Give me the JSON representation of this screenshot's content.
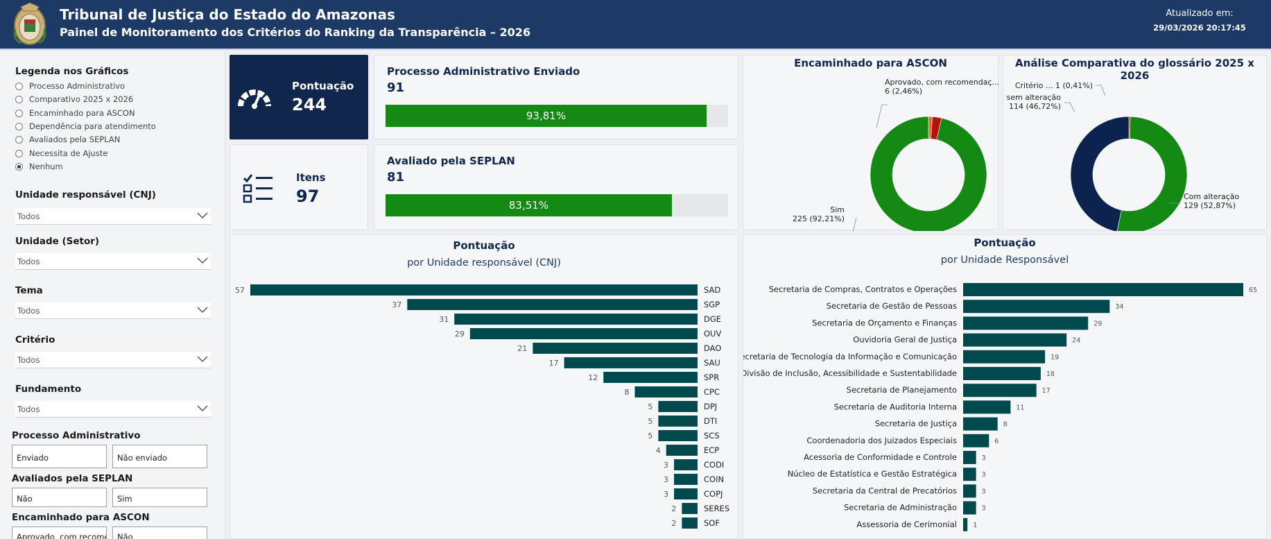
{
  "header": {
    "title": "Tribunal de Justiça do Estado do Amazonas",
    "subtitle": "Painel de Monitoramento dos Critérios do Ranking da Transparência – 2026",
    "updated_label": "Atualizado em:",
    "updated_value": "29/03/2026 20:17:45"
  },
  "filters": {
    "legend_title": "Legenda nos Gráficos",
    "legend_options": [
      {
        "label": "Processo Administrativo",
        "selected": false
      },
      {
        "label": "Comparativo 2025 x 2026",
        "selected": false
      },
      {
        "label": "Encaminhado para ASCON",
        "selected": false
      },
      {
        "label": "Dependência para atendimento",
        "selected": false
      },
      {
        "label": "Avaliados pela SEPLAN",
        "selected": false
      },
      {
        "label": "Necessita de Ajuste",
        "selected": false
      },
      {
        "label": "Nenhum",
        "selected": true
      }
    ],
    "dropdowns": [
      {
        "label": "Unidade responsável (CNJ)",
        "value": "Todos"
      },
      {
        "label": "Unidade (Setor)",
        "value": "Todos"
      },
      {
        "label": "Tema",
        "value": "Todos"
      },
      {
        "label": "Critério",
        "value": "Todos"
      },
      {
        "label": "Fundamento",
        "value": "Todos"
      }
    ],
    "button_groups": [
      {
        "label": "Processo Administrativo",
        "options": [
          "Enviado",
          "Não enviado"
        ]
      },
      {
        "label": "Avaliados pela SEPLAN",
        "options": [
          "Não",
          "Sim"
        ]
      },
      {
        "label": "Encaminhado para ASCON",
        "options": [
          "Aprovado, com recomendações",
          "Não"
        ]
      }
    ]
  },
  "kpis": {
    "pontuacao": {
      "label": "Pontuação",
      "value": "244",
      "icon": "gauge-icon"
    },
    "itens": {
      "label": "Itens",
      "value": "97",
      "icon": "checklist-icon"
    }
  },
  "progress": [
    {
      "title": "Processo Administrativo Enviado",
      "value": "91",
      "percent_label": "93,81%",
      "fraction": 0.9381
    },
    {
      "title": "Avaliado pela SEPLAN",
      "value": "81",
      "percent_label": "83,51%",
      "fraction": 0.8351
    }
  ],
  "colors": {
    "header": "#1d3a66",
    "navy": "#11264d",
    "green": "#148a14",
    "teal_bar": "#00494d",
    "red": "#b3120f",
    "orange": "#e0702a",
    "dark_navy": "#0c2350"
  },
  "chart_data": [
    {
      "type": "pie",
      "title": "Encaminhado para ASCON",
      "slices": [
        {
          "label": "Aprovado, com recomendaç...",
          "value": 6,
          "text": "6 (2,46%)",
          "color": "#b3120f"
        },
        {
          "label": "",
          "value": 2.5,
          "text": "",
          "color": "#e0702a"
        },
        {
          "label": "Sim",
          "value": 225,
          "text": "225 (92,21%)",
          "color": "#148a14"
        }
      ],
      "start_value_offset": 0
    },
    {
      "type": "pie",
      "title": "Análise Comparativa do glossário 2025 x 2026",
      "slices": [
        {
          "label": "Critério ...",
          "value": 1,
          "text": "1 (0,41%)",
          "color": "#b3120f"
        },
        {
          "label": "Com alteração",
          "value": 129,
          "text": "129 (52,87%)",
          "color": "#148a14"
        },
        {
          "label": "sem alteração",
          "value": 114,
          "text": "114 (46,72%)",
          "color": "#0c2350"
        }
      ]
    },
    {
      "type": "bar",
      "title": "Pontuação",
      "subtitle": "por Unidade responsável (CNJ)",
      "categories": [
        "SAD",
        "SGP",
        "DGE",
        "OUV",
        "DAO",
        "SAU",
        "SPR",
        "CPC",
        "DPJ",
        "DTI",
        "SCS",
        "ECP",
        "CODI",
        "COIN",
        "COPJ",
        "SERES",
        "SOF"
      ],
      "values": [
        57,
        37,
        31,
        29,
        21,
        17,
        12,
        8,
        5,
        5,
        5,
        4,
        3,
        3,
        3,
        2,
        2
      ],
      "xlim": [
        0,
        57
      ]
    },
    {
      "type": "bar",
      "title": "Pontuação",
      "subtitle": "por Unidade Responsável",
      "categories": [
        "Secretaria de Compras, Contratos e Operações",
        "Secretaria de Gestão de Pessoas",
        "Secretaria de Orçamento e Finanças",
        "Ouvidoria Geral de Justiça",
        "Secretaria de Tecnologia da Informação e Comunicação",
        "Divisão de Inclusão, Acessibilidade e Sustentabilidade",
        "Secretaria de Planejamento",
        "Secretaria de Auditoria Interna",
        "Secretaria de Justiça",
        "Coordenadoria dos Juizados Especiais",
        "Acessoria de Conformidade e Controle",
        "Núcleo de Estatística e Gestão Estratégica",
        "Secretaria da Central de Precatórios",
        "Secretaria de Administração",
        "Assessoria de Cerimonial"
      ],
      "values": [
        65,
        34,
        29,
        24,
        19,
        18,
        17,
        11,
        8,
        6,
        3,
        3,
        3,
        3,
        1
      ],
      "xlim": [
        0,
        65
      ]
    }
  ]
}
